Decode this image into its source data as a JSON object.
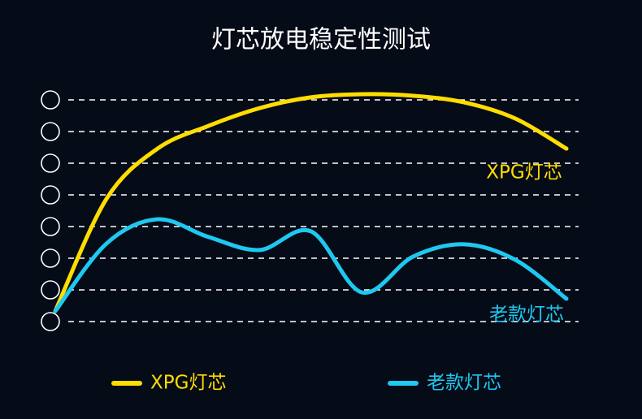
{
  "chart_data": {
    "type": "line",
    "title": "灯芯放电稳定性测试",
    "x": [
      0,
      1,
      2,
      3,
      4,
      5,
      6,
      7,
      8,
      9,
      10
    ],
    "xlim": [
      0,
      10
    ],
    "ylim": [
      0,
      7.5
    ],
    "yticks": [
      0,
      1,
      2,
      3,
      4,
      5,
      6,
      7
    ],
    "grid": true,
    "legend": "bottom",
    "series": [
      {
        "name": "XPG灯芯",
        "color": "#ffdd00",
        "values": [
          0.33,
          3.87,
          5.46,
          6.18,
          6.74,
          7.08,
          7.18,
          7.13,
          6.92,
          6.41,
          5.46
        ]
      },
      {
        "name": "老款灯芯",
        "color": "#1ec8f0",
        "values": [
          0.33,
          2.46,
          3.23,
          2.67,
          2.26,
          2.85,
          0.92,
          2.05,
          2.44,
          1.95,
          0.72
        ]
      }
    ]
  }
}
